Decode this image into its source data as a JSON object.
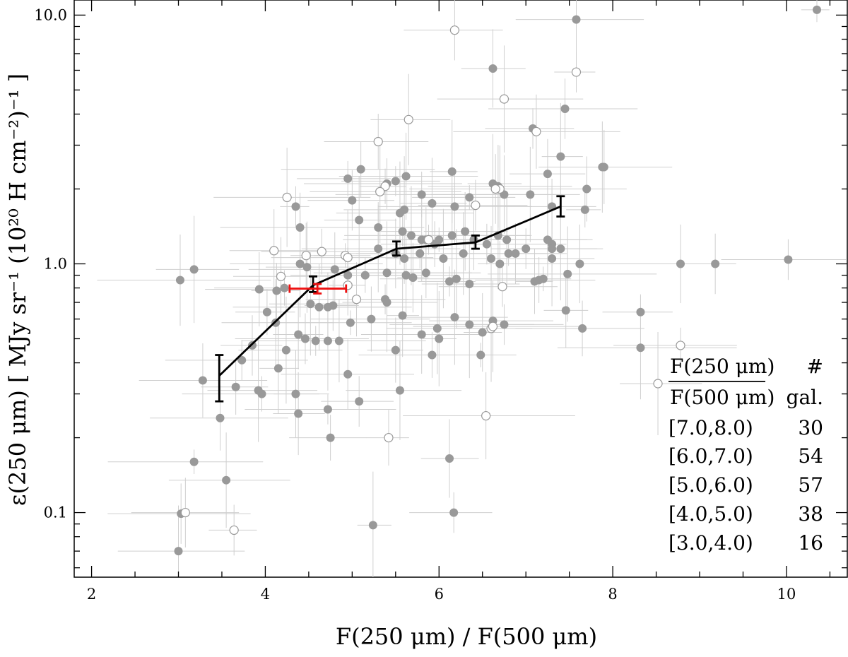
{
  "chart_data": {
    "type": "scatter",
    "title": "",
    "xlabel": "F(250 μm) / F(500 μm)",
    "ylabel": "ε(250 μm) [ MJy sr⁻¹ (10²⁰ H cm⁻²)⁻¹ ]",
    "xlim": [
      1.8,
      10.7
    ],
    "ylim": [
      0.055,
      11.5
    ],
    "yscale": "log",
    "xticks": [
      2,
      4,
      6,
      8,
      10
    ],
    "xtick_labels": [
      "2",
      "4",
      "6",
      "8",
      "10"
    ],
    "yticks": [
      0.1,
      1.0,
      10.0
    ],
    "ytick_labels": [
      "0.1",
      "1.0",
      "10.0"
    ],
    "grid": false,
    "colors": {
      "filled_points": "#999999",
      "open_points": "#999999",
      "error_bars": "#cfcfcf",
      "binned_line": "#000000",
      "red_point": "#ee1111"
    },
    "series": [
      {
        "marker": "filled-circle",
        "points": [
          [
            10.35,
            10.5
          ],
          [
            7.58,
            9.6
          ],
          [
            6.62,
            6.1
          ],
          [
            7.45,
            4.2
          ],
          [
            7.08,
            3.5
          ],
          [
            7.4,
            2.7
          ],
          [
            7.88,
            2.45
          ],
          [
            7.9,
            2.45
          ],
          [
            5.1,
            2.4
          ],
          [
            4.95,
            2.2
          ],
          [
            6.15,
            2.35
          ],
          [
            5.62,
            2.25
          ],
          [
            7.25,
            2.3
          ],
          [
            5.4,
            2.1
          ],
          [
            5.5,
            2.15
          ],
          [
            6.62,
            2.1
          ],
          [
            6.68,
            2.05
          ],
          [
            7.7,
            2.0
          ],
          [
            5.8,
            1.9
          ],
          [
            6.35,
            1.85
          ],
          [
            7.05,
            1.9
          ],
          [
            6.75,
            1.9
          ],
          [
            5.0,
            1.8
          ],
          [
            4.35,
            1.7
          ],
          [
            5.6,
            1.65
          ],
          [
            5.92,
            1.75
          ],
          [
            6.18,
            1.7
          ],
          [
            7.3,
            1.7
          ],
          [
            7.68,
            1.65
          ],
          [
            5.55,
            1.6
          ],
          [
            5.08,
            1.5
          ],
          [
            4.4,
            1.4
          ],
          [
            5.3,
            1.4
          ],
          [
            5.58,
            1.35
          ],
          [
            5.68,
            1.3
          ],
          [
            5.8,
            1.25
          ],
          [
            5.85,
            1.25
          ],
          [
            5.95,
            1.2
          ],
          [
            6.0,
            1.25
          ],
          [
            6.15,
            1.3
          ],
          [
            6.3,
            1.35
          ],
          [
            6.4,
            1.25
          ],
          [
            6.55,
            1.2
          ],
          [
            6.68,
            1.3
          ],
          [
            6.78,
            1.25
          ],
          [
            7.25,
            1.25
          ],
          [
            7.3,
            1.2
          ],
          [
            7.3,
            1.15
          ],
          [
            7.4,
            1.15
          ],
          [
            5.3,
            1.15
          ],
          [
            5.5,
            1.1
          ],
          [
            5.6,
            1.05
          ],
          [
            5.78,
            1.1
          ],
          [
            6.05,
            1.05
          ],
          [
            6.28,
            1.1
          ],
          [
            6.6,
            1.05
          ],
          [
            6.7,
            1.0
          ],
          [
            6.8,
            1.1
          ],
          [
            7.3,
            1.05
          ],
          [
            7.62,
            1.0
          ],
          [
            6.88,
            1.1
          ],
          [
            7.0,
            1.15
          ],
          [
            4.4,
            1.0
          ],
          [
            4.48,
            0.97
          ],
          [
            4.8,
            0.95
          ],
          [
            4.95,
            0.9
          ],
          [
            5.15,
            0.9
          ],
          [
            5.4,
            0.92
          ],
          [
            5.62,
            0.9
          ],
          [
            5.7,
            0.88
          ],
          [
            5.85,
            0.92
          ],
          [
            6.12,
            0.85
          ],
          [
            6.2,
            0.87
          ],
          [
            6.35,
            0.83
          ],
          [
            7.1,
            0.85
          ],
          [
            7.15,
            0.86
          ],
          [
            7.2,
            0.87
          ],
          [
            7.48,
            0.91
          ],
          [
            8.78,
            1.0
          ],
          [
            9.18,
            1.0
          ],
          [
            10.02,
            1.04
          ],
          [
            3.18,
            0.95
          ],
          [
            3.02,
            0.86
          ],
          [
            3.93,
            0.79
          ],
          [
            4.13,
            0.78
          ],
          [
            4.22,
            0.8
          ],
          [
            4.52,
            0.69
          ],
          [
            4.62,
            0.67
          ],
          [
            4.72,
            0.67
          ],
          [
            4.78,
            0.68
          ],
          [
            5.38,
            0.72
          ],
          [
            5.4,
            0.7
          ],
          [
            5.58,
            0.62
          ],
          [
            5.22,
            0.6
          ],
          [
            4.02,
            0.64
          ],
          [
            4.98,
            0.58
          ],
          [
            6.18,
            0.61
          ],
          [
            6.5,
            0.53
          ],
          [
            6.62,
            0.59
          ],
          [
            6.75,
            0.57
          ],
          [
            6.35,
            0.57
          ],
          [
            5.98,
            0.55
          ],
          [
            7.46,
            0.65
          ],
          [
            7.65,
            0.55
          ],
          [
            8.32,
            0.64
          ],
          [
            8.32,
            0.46
          ],
          [
            4.12,
            0.58
          ],
          [
            4.38,
            0.52
          ],
          [
            4.46,
            0.5
          ],
          [
            4.58,
            0.49
          ],
          [
            4.72,
            0.49
          ],
          [
            4.85,
            0.49
          ],
          [
            5.5,
            0.45
          ],
          [
            5.92,
            0.43
          ],
          [
            6.48,
            0.43
          ],
          [
            6.0,
            0.5
          ],
          [
            5.8,
            0.52
          ],
          [
            3.85,
            0.47
          ],
          [
            3.73,
            0.41
          ],
          [
            4.24,
            0.45
          ],
          [
            4.15,
            0.38
          ],
          [
            3.28,
            0.34
          ],
          [
            3.66,
            0.32
          ],
          [
            3.96,
            0.3
          ],
          [
            3.92,
            0.31
          ],
          [
            4.35,
            0.3
          ],
          [
            4.95,
            0.36
          ],
          [
            5.08,
            0.28
          ],
          [
            4.72,
            0.26
          ],
          [
            5.55,
            0.31
          ],
          [
            4.38,
            0.25
          ],
          [
            3.48,
            0.24
          ],
          [
            4.75,
            0.2
          ],
          [
            3.18,
            0.16
          ],
          [
            3.55,
            0.135
          ],
          [
            6.12,
            0.165
          ],
          [
            3.03,
            0.099
          ],
          [
            6.17,
            0.1
          ],
          [
            5.24,
            0.089
          ],
          [
            3.0,
            0.07
          ]
        ]
      },
      {
        "marker": "open-circle",
        "points": [
          [
            6.18,
            8.7
          ],
          [
            7.58,
            5.9
          ],
          [
            6.75,
            4.6
          ],
          [
            5.65,
            3.8
          ],
          [
            7.12,
            3.4
          ],
          [
            5.3,
            3.1
          ],
          [
            5.38,
            2.05
          ],
          [
            5.32,
            1.95
          ],
          [
            6.7,
            2.0
          ],
          [
            6.65,
            2.0
          ],
          [
            6.42,
            1.72
          ],
          [
            5.88,
            1.25
          ],
          [
            4.25,
            1.85
          ],
          [
            4.1,
            1.13
          ],
          [
            4.47,
            1.08
          ],
          [
            4.65,
            1.12
          ],
          [
            4.92,
            1.08
          ],
          [
            4.95,
            1.06
          ],
          [
            4.18,
            0.89
          ],
          [
            4.95,
            0.82
          ],
          [
            6.73,
            0.81
          ],
          [
            6.6,
            0.55
          ],
          [
            6.62,
            0.56
          ],
          [
            5.05,
            0.72
          ],
          [
            5.42,
            0.2
          ],
          [
            8.78,
            0.47
          ],
          [
            8.52,
            0.33
          ],
          [
            6.54,
            0.245
          ],
          [
            3.08,
            0.1
          ],
          [
            3.64,
            0.085
          ]
        ]
      }
    ],
    "binned_relation": {
      "x": [
        3.47,
        4.55,
        5.51,
        6.42,
        7.4
      ],
      "y": [
        0.355,
        0.82,
        1.15,
        1.22,
        1.7
      ],
      "y_lo": [
        0.28,
        0.77,
        1.08,
        1.15,
        1.55
      ],
      "y_hi": [
        0.43,
        0.89,
        1.23,
        1.3,
        1.87
      ]
    },
    "red_point": {
      "x": 4.6,
      "y": 0.795,
      "x_lo": 4.28,
      "x_hi": 4.93,
      "y_lo": 0.76,
      "y_hi": 0.83
    },
    "legend": {
      "placement": "bottom-right",
      "header_fraction_num": "F(250 μm)",
      "header_fraction_den": "F(500 μm)",
      "header_count_top": "#",
      "header_count_bottom": "gal.",
      "rows": [
        {
          "range": "[7.0,8.0)",
          "count": "30"
        },
        {
          "range": "[6.0,7.0)",
          "count": "54"
        },
        {
          "range": "[5.0,6.0)",
          "count": "57"
        },
        {
          "range": "[4.0,5.0)",
          "count": "38"
        },
        {
          "range": "[3.0,4.0)",
          "count": "16"
        }
      ]
    }
  }
}
